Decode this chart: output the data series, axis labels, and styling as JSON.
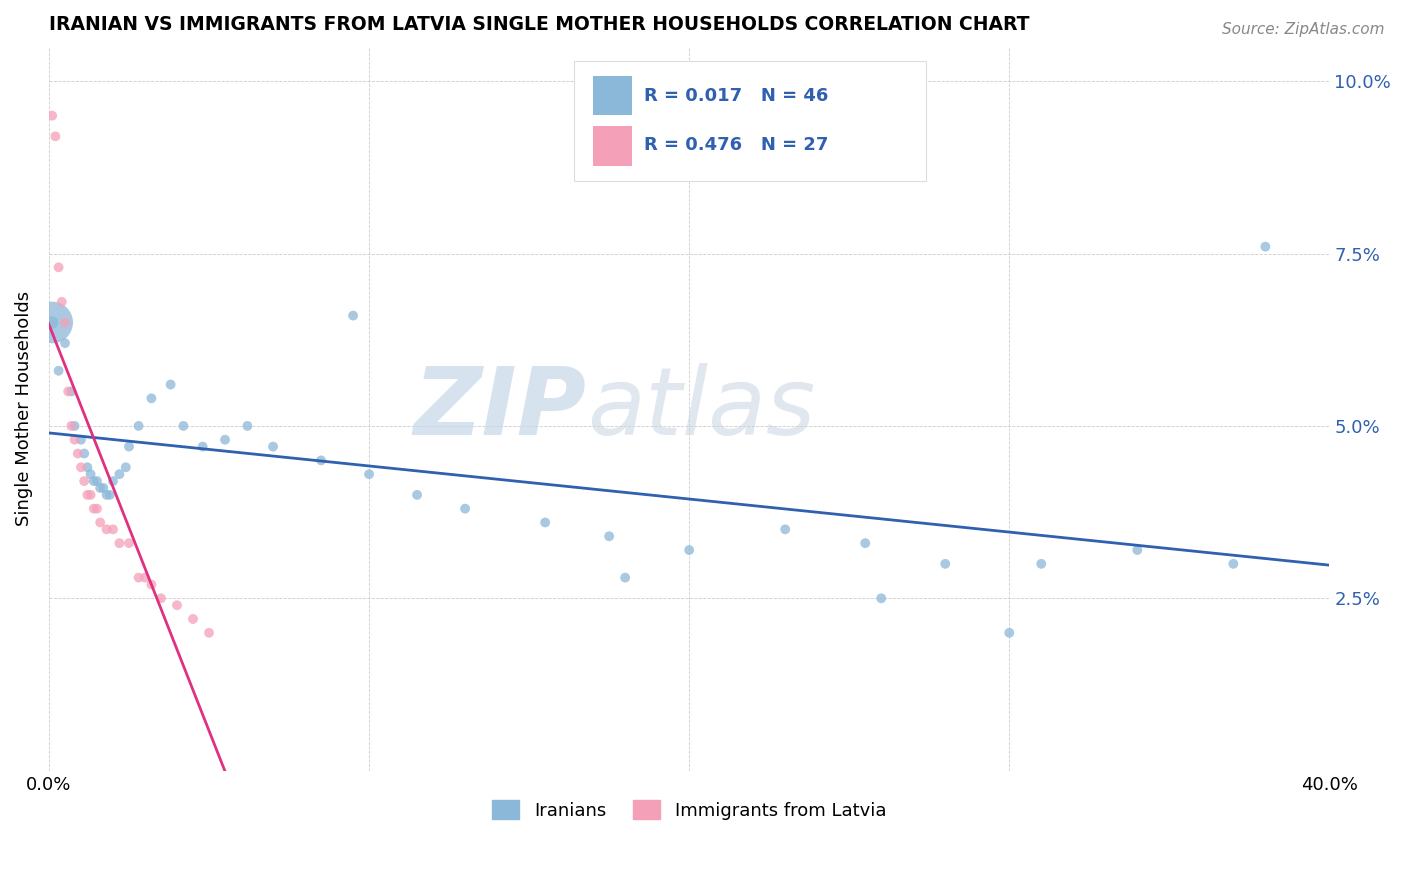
{
  "title": "IRANIAN VS IMMIGRANTS FROM LATVIA SINGLE MOTHER HOUSEHOLDS CORRELATION CHART",
  "source": "Source: ZipAtlas.com",
  "ylabel": "Single Mother Households",
  "xlim": [
    0.0,
    0.4
  ],
  "ylim": [
    0.0,
    0.105
  ],
  "xticks": [
    0.0,
    0.1,
    0.2,
    0.3,
    0.4
  ],
  "xticklabels": [
    "0.0%",
    "",
    "",
    "",
    "40.0%"
  ],
  "yticks": [
    0.0,
    0.025,
    0.05,
    0.075,
    0.1
  ],
  "yticklabels_right": [
    "",
    "2.5%",
    "5.0%",
    "7.5%",
    "10.0%"
  ],
  "legend_labels": [
    "Iranians",
    "Immigrants from Latvia"
  ],
  "color_blue": "#8BB8D8",
  "color_pink": "#F4A0B8",
  "color_blue_line": "#3060B0",
  "color_pink_line": "#E03080",
  "iranians_x": [
    0.001,
    0.003,
    0.005,
    0.007,
    0.008,
    0.01,
    0.011,
    0.012,
    0.013,
    0.014,
    0.015,
    0.016,
    0.017,
    0.018,
    0.019,
    0.02,
    0.022,
    0.024,
    0.025,
    0.028,
    0.032,
    0.038,
    0.042,
    0.048,
    0.055,
    0.062,
    0.07,
    0.085,
    0.1,
    0.115,
    0.13,
    0.155,
    0.175,
    0.2,
    0.23,
    0.255,
    0.28,
    0.31,
    0.34,
    0.37,
    0.095,
    0.18,
    0.26,
    0.3,
    0.38,
    0.001
  ],
  "iranians_y": [
    0.065,
    0.058,
    0.062,
    0.055,
    0.05,
    0.048,
    0.046,
    0.044,
    0.043,
    0.042,
    0.042,
    0.041,
    0.041,
    0.04,
    0.04,
    0.042,
    0.043,
    0.044,
    0.047,
    0.05,
    0.054,
    0.056,
    0.05,
    0.047,
    0.048,
    0.05,
    0.047,
    0.045,
    0.043,
    0.04,
    0.038,
    0.036,
    0.034,
    0.032,
    0.035,
    0.033,
    0.03,
    0.03,
    0.032,
    0.03,
    0.066,
    0.028,
    0.025,
    0.02,
    0.076,
    0.065
  ],
  "iranians_size": [
    80,
    50,
    50,
    50,
    50,
    50,
    50,
    50,
    50,
    50,
    50,
    50,
    50,
    50,
    50,
    50,
    50,
    50,
    50,
    50,
    50,
    50,
    50,
    50,
    50,
    50,
    50,
    50,
    50,
    50,
    50,
    50,
    50,
    50,
    50,
    50,
    50,
    50,
    50,
    50,
    50,
    50,
    50,
    50,
    50,
    900
  ],
  "latvia_x": [
    0.001,
    0.002,
    0.003,
    0.004,
    0.005,
    0.006,
    0.007,
    0.008,
    0.009,
    0.01,
    0.011,
    0.012,
    0.013,
    0.014,
    0.015,
    0.016,
    0.018,
    0.02,
    0.022,
    0.025,
    0.028,
    0.03,
    0.032,
    0.035,
    0.04,
    0.045,
    0.05
  ],
  "latvia_y": [
    0.095,
    0.092,
    0.073,
    0.068,
    0.065,
    0.055,
    0.05,
    0.048,
    0.046,
    0.044,
    0.042,
    0.04,
    0.04,
    0.038,
    0.038,
    0.036,
    0.035,
    0.035,
    0.033,
    0.033,
    0.028,
    0.028,
    0.027,
    0.025,
    0.024,
    0.022,
    0.02
  ],
  "latvia_size": [
    50,
    50,
    50,
    50,
    50,
    50,
    50,
    50,
    50,
    50,
    50,
    50,
    50,
    50,
    50,
    50,
    50,
    50,
    50,
    50,
    50,
    50,
    50,
    50,
    50,
    50,
    50
  ]
}
